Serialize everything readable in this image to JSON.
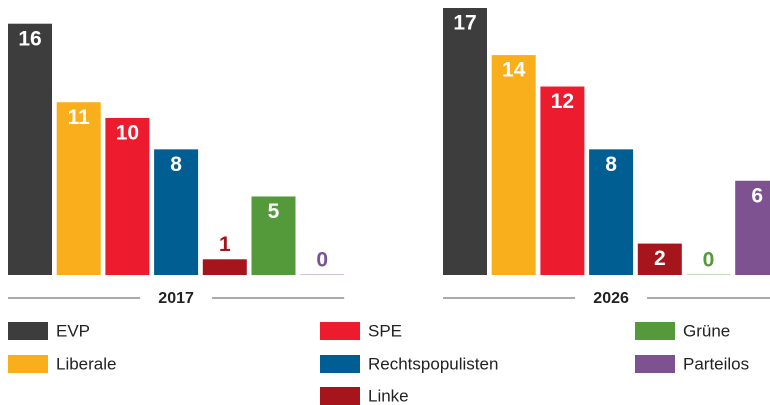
{
  "chart_data": {
    "type": "bar",
    "categories": [
      "2017",
      "2026"
    ],
    "series": [
      {
        "name": "EVP",
        "color": "#3d3d3d",
        "values": [
          16,
          17
        ]
      },
      {
        "name": "Liberale",
        "color": "#f9ae1b",
        "values": [
          11,
          14
        ]
      },
      {
        "name": "SPE",
        "color": "#ec1c2e",
        "values": [
          10,
          12
        ]
      },
      {
        "name": "Rechtspopulisten",
        "color": "#005e93",
        "values": [
          8,
          8
        ]
      },
      {
        "name": "Linke",
        "color": "#a6141c",
        "values": [
          1,
          2
        ]
      },
      {
        "name": "Grüne",
        "color": "#549a3b",
        "values": [
          5,
          0
        ]
      },
      {
        "name": "Parteilos",
        "color": "#7e5291",
        "values": [
          0,
          6
        ]
      }
    ]
  }
}
